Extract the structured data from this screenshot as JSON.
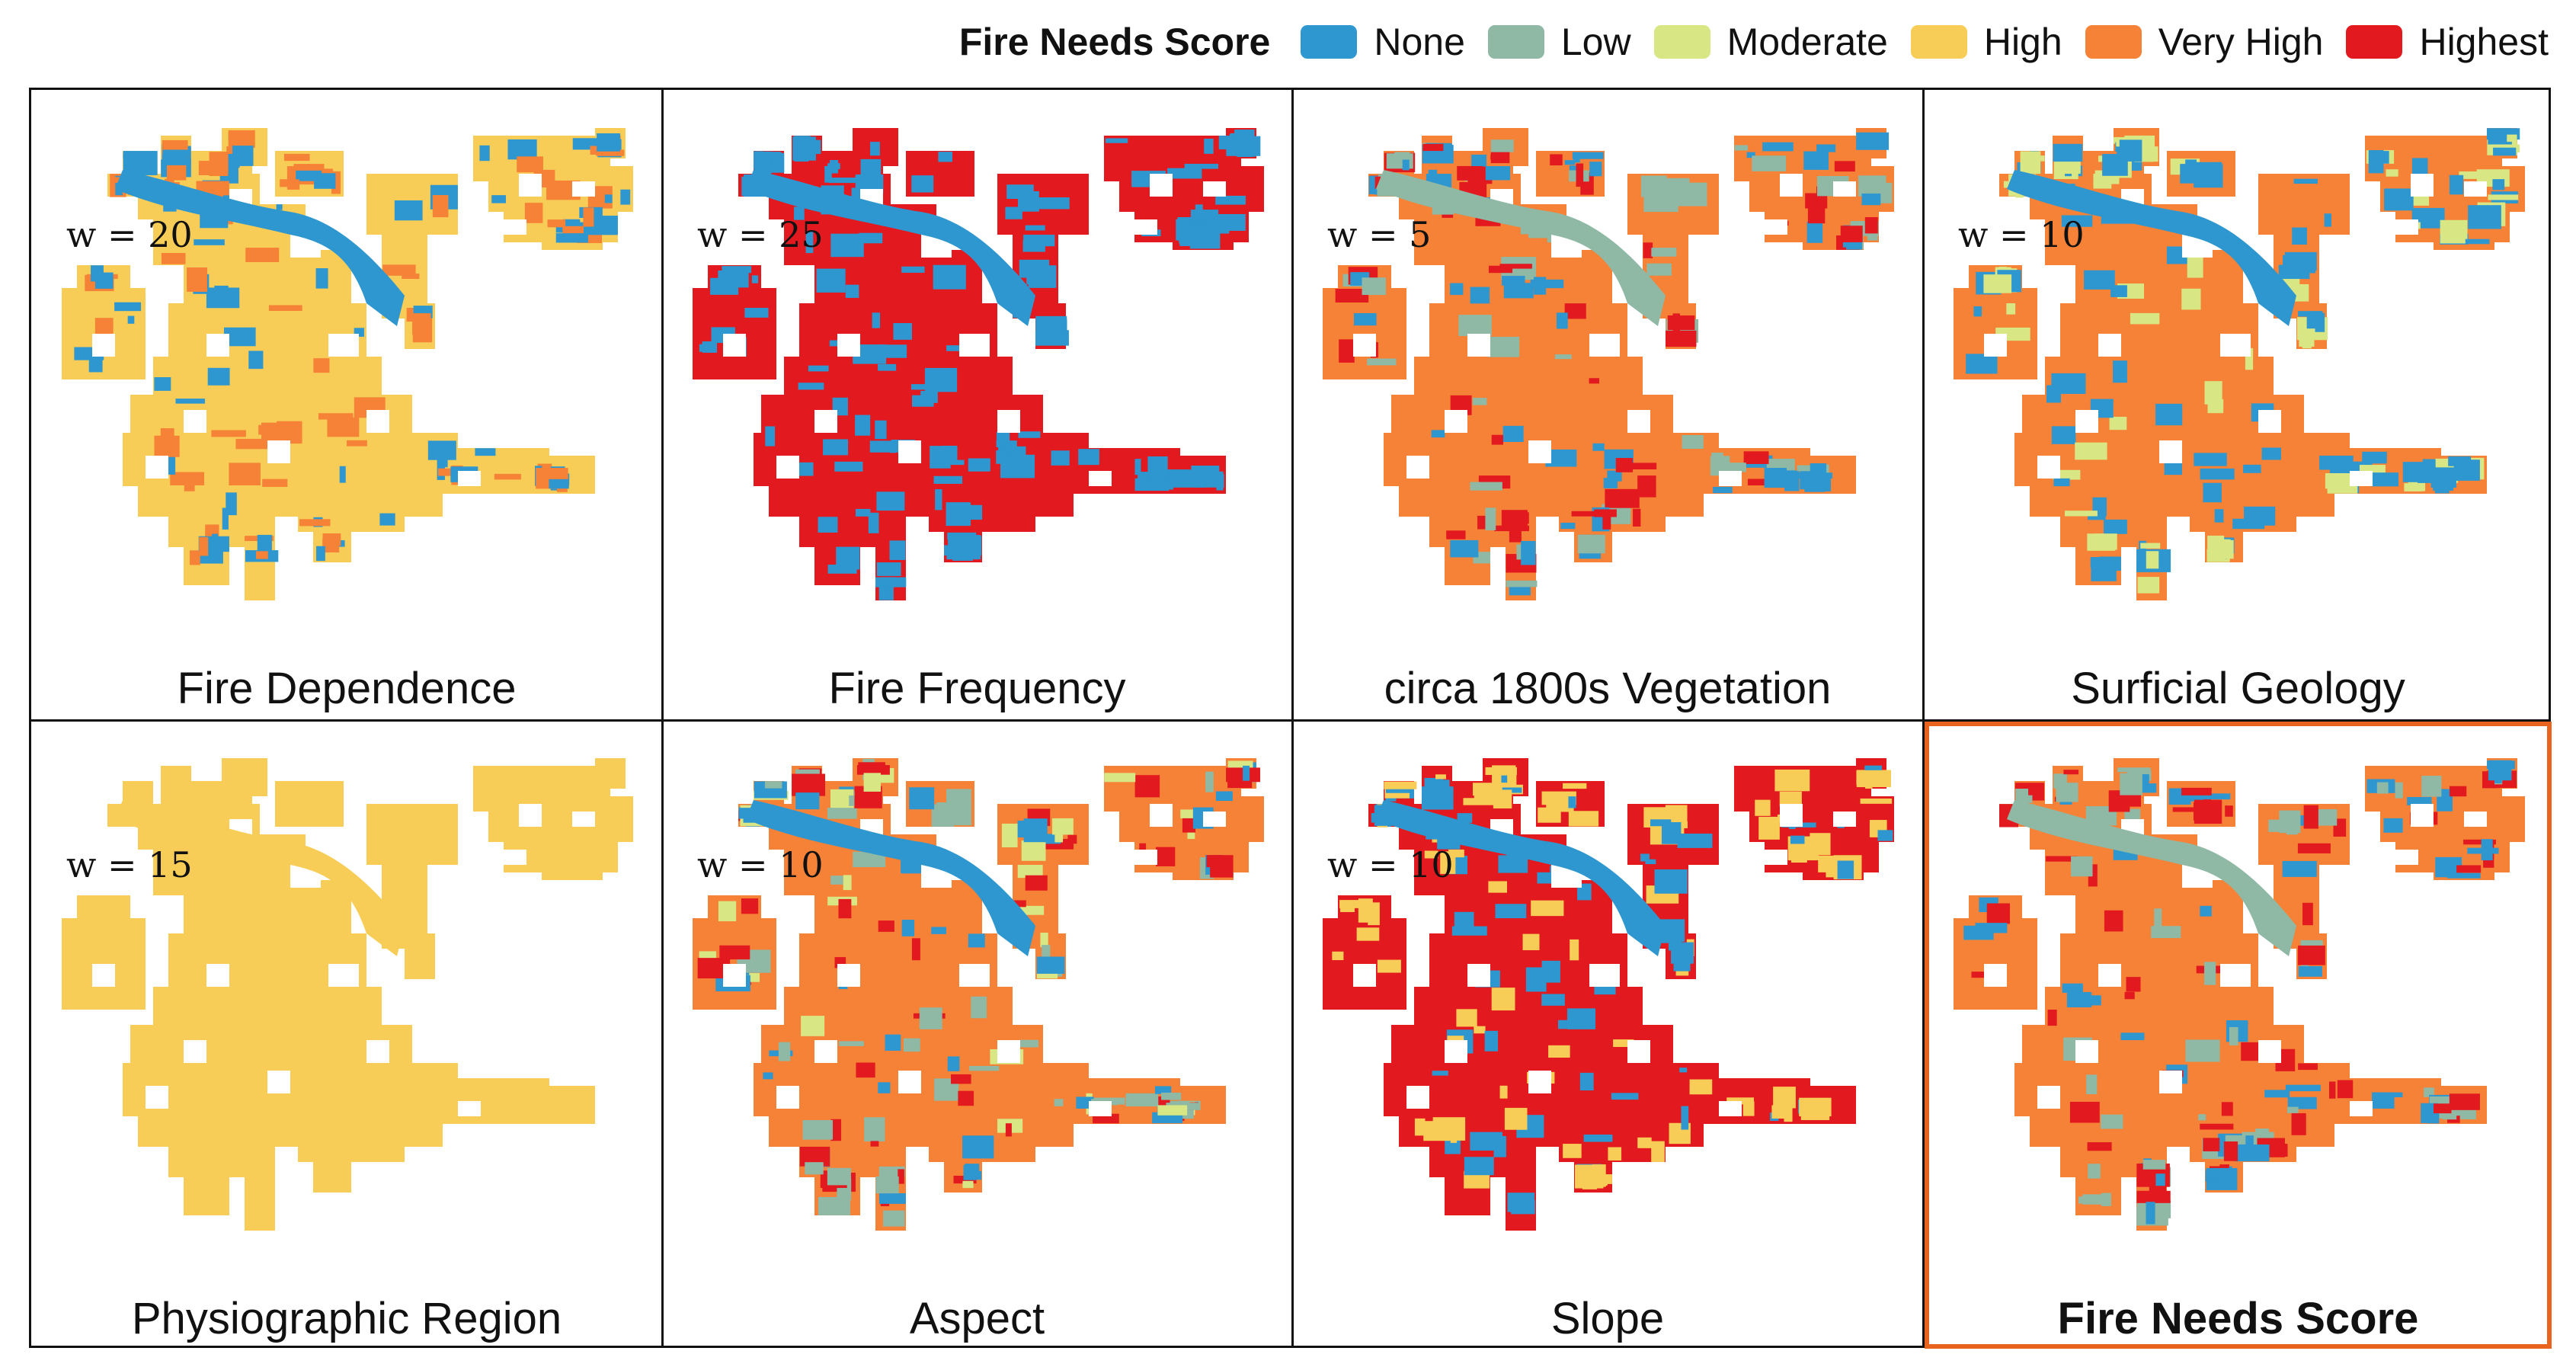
{
  "legend": {
    "title": "Fire Needs Score",
    "items": [
      {
        "label": "None",
        "color": "#2f97cf"
      },
      {
        "label": "Low",
        "color": "#8fb9a5"
      },
      {
        "label": "Moderate",
        "color": "#d8e784"
      },
      {
        "label": "High",
        "color": "#f8cd57"
      },
      {
        "label": "Very High",
        "color": "#f58236"
      },
      {
        "label": "Highest",
        "color": "#e2191f"
      }
    ]
  },
  "panels": [
    {
      "title": "Fire Dependence",
      "weight": "w = 20",
      "base": "#f8cd57",
      "mix": [
        "#2f97cf",
        "#f58236"
      ],
      "river": "#2f97cf"
    },
    {
      "title": "Fire Frequency",
      "weight": "w = 25",
      "base": "#e2191f",
      "mix": [
        "#2f97cf"
      ],
      "river": "#2f97cf"
    },
    {
      "title": "circa 1800s Vegetation",
      "weight": "w = 5",
      "base": "#f58236",
      "mix": [
        "#2f97cf",
        "#8fb9a5",
        "#e2191f"
      ],
      "river": "#8fb9a5"
    },
    {
      "title": "Surficial Geology",
      "weight": "w = 10",
      "base": "#f58236",
      "mix": [
        "#2f97cf",
        "#d8e784"
      ],
      "river": "#2f97cf"
    },
    {
      "title": "Physiographic Region",
      "weight": "w = 15",
      "base": "#f8cd57",
      "mix": [],
      "river": "#f8cd57"
    },
    {
      "title": "Aspect",
      "weight": "w = 10",
      "base": "#f58236",
      "mix": [
        "#2f97cf",
        "#d8e784",
        "#e2191f",
        "#8fb9a5"
      ],
      "river": "#2f97cf"
    },
    {
      "title": "Slope",
      "weight": "w = 10",
      "base": "#e2191f",
      "mix": [
        "#2f97cf",
        "#f8cd57"
      ],
      "river": "#2f97cf"
    },
    {
      "title": "Fire Needs Score",
      "weight": "",
      "base": "#f58236",
      "mix": [
        "#2f97cf",
        "#8fb9a5",
        "#e2191f"
      ],
      "river": "#8fb9a5"
    }
  ],
  "highlight_color": "#e8641e"
}
